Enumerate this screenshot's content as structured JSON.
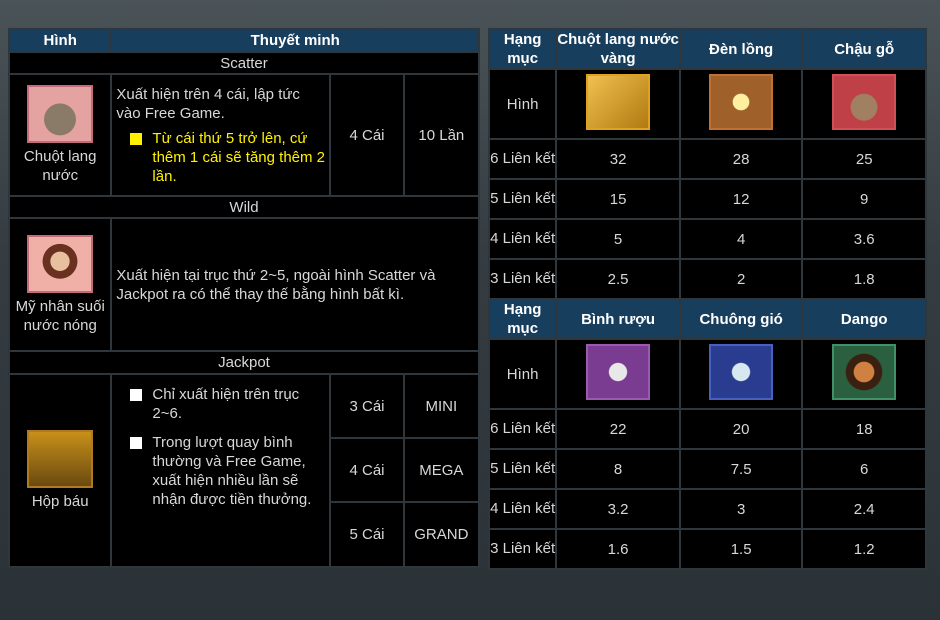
{
  "left_table": {
    "headers": [
      "Hình",
      "Thuyết minh"
    ],
    "sections": {
      "scatter": {
        "title": "Scatter",
        "symbol_name": "Chuột lang nước",
        "description": "Xuất hiện trên 4 cái, lập tức vào Free Game.",
        "bullet": "Từ cái thứ 5 trở lên, cứ thêm 1 cái sẽ tăng thêm 2 lần.",
        "count": "4 Cái",
        "reward": "10 Lần"
      },
      "wild": {
        "title": "Wild",
        "symbol_name": "Mỹ nhân suối nước nóng",
        "description": "Xuất hiện tại trục thứ 2~5, ngoài hình Scatter và Jackpot ra có thể thay thế bằng hình bất kì."
      },
      "jackpot": {
        "title": "Jackpot",
        "symbol_name": "Hộp báu",
        "bullets": [
          "Chỉ xuất hiện trên trục 2~6.",
          "Trong lượt quay bình thường và Free Game, xuất hiện nhiều lần sẽ nhận được tiền thưởng."
        ],
        "tiers": [
          {
            "count": "3 Cái",
            "prize": "MINI"
          },
          {
            "count": "4 Cái",
            "prize": "MEGA"
          },
          {
            "count": "5 Cái",
            "prize": "GRAND"
          }
        ]
      }
    }
  },
  "paytable": [
    {
      "category_label": "Hạng mục",
      "image_label": "Hình",
      "symbols": [
        "Chuột lang nước vàng",
        "Đèn lồng",
        "Chậu gỗ"
      ],
      "rows": [
        {
          "label": "6 Liên kết",
          "values": [
            "32",
            "28",
            "25"
          ]
        },
        {
          "label": "5 Liên kết",
          "values": [
            "15",
            "12",
            "9"
          ]
        },
        {
          "label": "4 Liên kết",
          "values": [
            "5",
            "4",
            "3.6"
          ]
        },
        {
          "label": "3 Liên kết",
          "values": [
            "2.5",
            "2",
            "1.8"
          ]
        }
      ]
    },
    {
      "category_label": "Hạng mục",
      "image_label": "Hình",
      "symbols": [
        "Bình rượu",
        "Chuông gió",
        "Dango"
      ],
      "rows": [
        {
          "label": "6 Liên kết",
          "values": [
            "22",
            "20",
            "18"
          ]
        },
        {
          "label": "5 Liên kết",
          "values": [
            "8",
            "7.5",
            "6"
          ]
        },
        {
          "label": "4 Liên kết",
          "values": [
            "3.2",
            "3",
            "2.4"
          ]
        },
        {
          "label": "3 Liên kết",
          "values": [
            "1.6",
            "1.5",
            "1.2"
          ]
        }
      ]
    }
  ],
  "colors": {
    "header": "#183e5e",
    "highlight_text": "#fff200",
    "cell_bg": "#000000"
  }
}
